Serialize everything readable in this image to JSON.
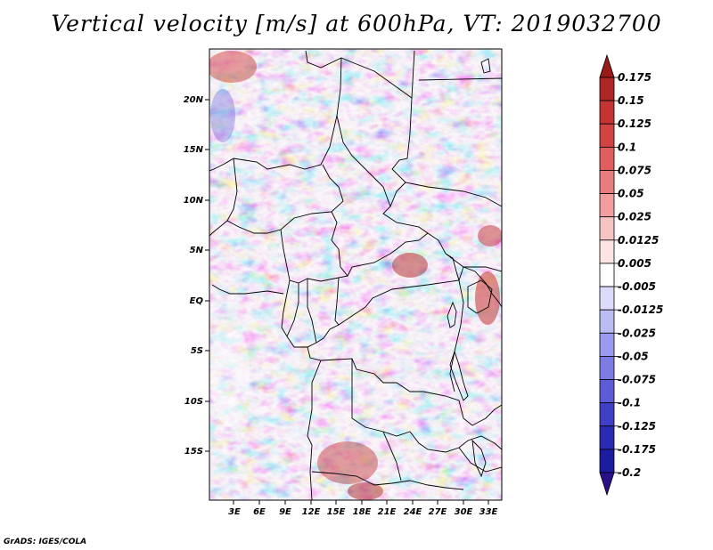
{
  "title": "Vertical velocity [m/s] at 600hPa, VT: 2019032700",
  "credit": "GrADS: IGES/COLA",
  "lat_labels": [
    "20N",
    "15N",
    "10N",
    "5N",
    "EQ",
    "5S",
    "10S",
    "15S"
  ],
  "lon_labels": [
    "3E",
    "6E",
    "9E",
    "12E",
    "15E",
    "18E",
    "21E",
    "24E",
    "27E",
    "30E",
    "33E"
  ],
  "colorbar": {
    "labels": [
      "0.175",
      "0.15",
      "0.125",
      "0.1",
      "0.075",
      "0.05",
      "0.025",
      "0.0125",
      "0.005",
      "-0.005",
      "-0.0125",
      "-0.025",
      "-0.05",
      "-0.075",
      "-0.1",
      "-0.125",
      "-0.175",
      "-0.2"
    ],
    "colors": [
      "#9a1a1a",
      "#b02626",
      "#c43434",
      "#d24444",
      "#df5e5e",
      "#e97c7c",
      "#f29e9e",
      "#f7c4c4",
      "#fce4e4",
      "#ffffff",
      "#dcdcfa",
      "#bcbcf4",
      "#9a9aee",
      "#7c7ce4",
      "#5c5cd6",
      "#4040c6",
      "#2a2ab4",
      "#1c1ca0",
      "#2a1088"
    ]
  }
}
